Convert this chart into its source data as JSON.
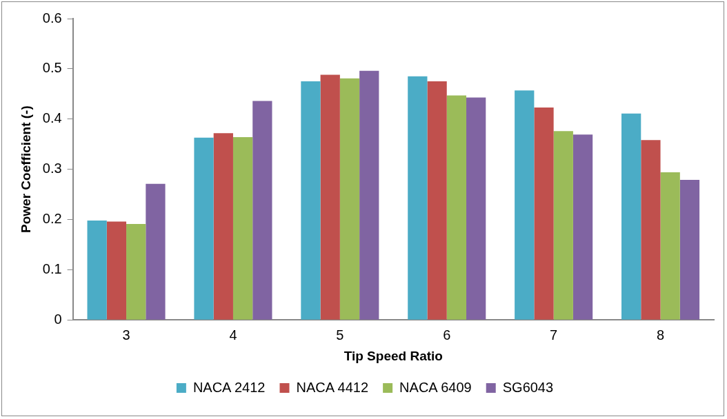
{
  "chart_data": {
    "type": "bar",
    "xlabel": "Tip Speed Ratio",
    "ylabel": "Power Coefficient (-)",
    "categories": [
      "3",
      "4",
      "5",
      "6",
      "7",
      "8"
    ],
    "series": [
      {
        "name": "NACA 2412",
        "color": "#4bacc6",
        "values": [
          0.198,
          0.363,
          0.475,
          0.485,
          0.457,
          0.411
        ]
      },
      {
        "name": "NACA 4412",
        "color": "#c0504d",
        "values": [
          0.196,
          0.372,
          0.488,
          0.475,
          0.423,
          0.358
        ]
      },
      {
        "name": "NACA 6409",
        "color": "#9bbb59",
        "values": [
          0.191,
          0.364,
          0.481,
          0.447,
          0.376,
          0.294
        ]
      },
      {
        "name": "SG6043",
        "color": "#8064a2",
        "values": [
          0.271,
          0.436,
          0.496,
          0.443,
          0.369,
          0.279
        ]
      }
    ],
    "ylim": [
      0,
      0.6
    ],
    "yticks": [
      0,
      0.1,
      0.2,
      0.3,
      0.4,
      0.5,
      0.6
    ],
    "grid": false,
    "legend": "bottom"
  }
}
